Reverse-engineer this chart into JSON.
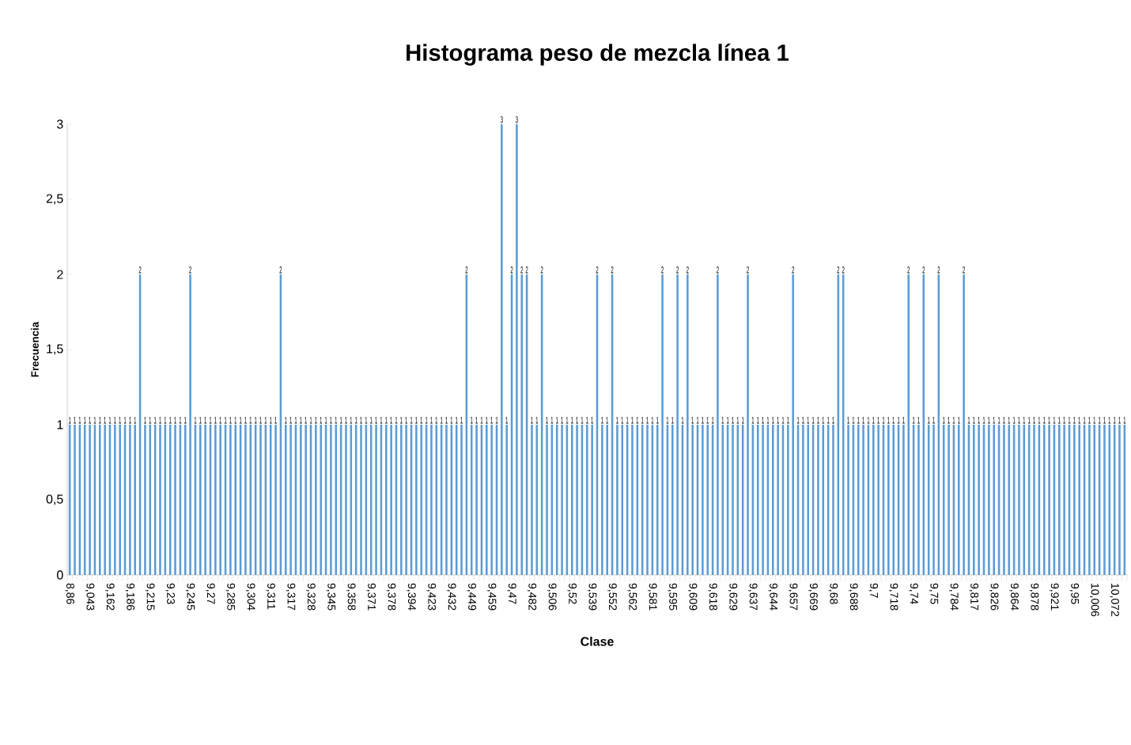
{
  "chart_data": {
    "type": "bar",
    "title": "Histograma peso de mezcla línea 1",
    "xlabel": "Clase",
    "ylabel": "Frecuencia",
    "color": "#5b9bd5",
    "value_labels": [
      "1",
      "1",
      "1",
      "1",
      "1",
      "1",
      "1",
      "1",
      "1",
      "1",
      "1",
      "1",
      "1",
      "1",
      "2",
      "1",
      "1",
      "1",
      "1",
      "1",
      "1",
      "1",
      "1",
      "1",
      "2",
      "1",
      "1",
      "1",
      "1",
      "1",
      "1",
      "1",
      "1",
      "1",
      "1",
      "1",
      "1",
      "1",
      "1",
      "1",
      "1",
      "1",
      "2",
      "1",
      "1",
      "1",
      "1",
      "1",
      "1",
      "1",
      "1",
      "1",
      "1",
      "1",
      "1",
      "1",
      "1",
      "1",
      "1",
      "1",
      "1",
      "1",
      "1",
      "1",
      "1",
      "1",
      "1",
      "1",
      "1",
      "1",
      "1",
      "1",
      "1",
      "1",
      "1",
      "1",
      "1",
      "1",
      "1",
      "2",
      "1",
      "1",
      "1",
      "1",
      "1",
      "1",
      "3",
      "1",
      "2",
      "3",
      "2",
      "2",
      "1",
      "1",
      "2",
      "1",
      "1",
      "1",
      "1",
      "1",
      "1",
      "1",
      "1",
      "1",
      "1",
      "2",
      "1",
      "1",
      "2",
      "1",
      "1",
      "1",
      "1",
      "1",
      "1",
      "1",
      "1",
      "1",
      "2",
      "1",
      "1",
      "2",
      "1",
      "2",
      "1",
      "1",
      "1",
      "1",
      "1",
      "2",
      "1",
      "1",
      "1",
      "1",
      "1",
      "2",
      "1",
      "1",
      "1",
      "1",
      "1",
      "1",
      "1",
      "1",
      "2",
      "1",
      "1",
      "1",
      "1",
      "1",
      "1",
      "1",
      "1",
      "2",
      "2",
      "1",
      "1",
      "1",
      "1",
      "1",
      "1",
      "1",
      "1",
      "1",
      "1",
      "1",
      "1",
      "2",
      "1",
      "1",
      "2",
      "1",
      "1",
      "2",
      "1",
      "1",
      "1",
      "1",
      "2",
      "1",
      "1",
      "1",
      "1",
      "1",
      "1",
      "1",
      "1",
      "1",
      "1",
      "1",
      "1",
      "1",
      "1",
      "1",
      "1",
      "1",
      "1",
      "1",
      "1",
      "1",
      "1",
      "1",
      "1",
      "1",
      "1",
      "1",
      "1",
      "1",
      "1",
      "1",
      "1"
    ],
    "ylim": [
      0,
      3
    ],
    "yticks": [
      0,
      {
        "value": 0.5,
        "label": "0,5"
      },
      1,
      {
        "value": 1.5,
        "label": "1,5"
      },
      2,
      {
        "value": 2.5,
        "label": "2,5"
      },
      3
    ],
    "categories": [
      "8,86",
      null,
      null,
      null,
      "9,043",
      null,
      null,
      null,
      "9,162",
      null,
      null,
      null,
      "9,186",
      null,
      null,
      null,
      "9,215",
      null,
      null,
      null,
      "9,23",
      null,
      null,
      null,
      "9,245",
      null,
      null,
      null,
      "9,27",
      null,
      null,
      null,
      "9,285",
      null,
      null,
      null,
      "9,304",
      null,
      null,
      null,
      "9,311",
      null,
      null,
      null,
      "9,317",
      null,
      null,
      null,
      "9,328",
      null,
      null,
      null,
      "9,345",
      null,
      null,
      null,
      "9,358",
      null,
      null,
      null,
      "9,371",
      null,
      null,
      null,
      "9,378",
      null,
      null,
      null,
      "9,394",
      null,
      null,
      null,
      "9,423",
      null,
      null,
      null,
      "9,432",
      null,
      null,
      null,
      "9,449",
      null,
      null,
      null,
      "9,459",
      null,
      null,
      null,
      "9,47",
      null,
      null,
      null,
      "9,482",
      null,
      null,
      null,
      "9,506",
      null,
      null,
      null,
      "9,52",
      null,
      null,
      null,
      "9,539",
      null,
      null,
      null,
      "9,552",
      null,
      null,
      null,
      "9,562",
      null,
      null,
      null,
      "9,581",
      null,
      null,
      null,
      "9,595",
      null,
      null,
      null,
      "9,609",
      null,
      null,
      null,
      "9,618",
      null,
      null,
      null,
      "9,629",
      null,
      null,
      null,
      "9,637",
      null,
      null,
      null,
      "9,644",
      null,
      null,
      null,
      "9,657",
      null,
      null,
      null,
      "9,669",
      null,
      null,
      null,
      "9,68",
      null,
      null,
      null,
      "9,688",
      null,
      null,
      null,
      "9,7",
      null,
      null,
      null,
      "9,718",
      null,
      null,
      null,
      "9,74",
      null,
      null,
      null,
      "9,75",
      null,
      null,
      null,
      "9,784",
      null,
      null,
      null,
      "9,817",
      null,
      null,
      null,
      "9,826",
      null,
      null,
      null,
      "9,864",
      null,
      null,
      null,
      "9,878",
      null,
      null,
      null,
      "9,921",
      null,
      null,
      null,
      "9,95",
      null,
      null,
      null,
      "10,006",
      null,
      null,
      null,
      "10,072",
      null,
      null
    ],
    "values": [
      1,
      1,
      1,
      1,
      1,
      1,
      1,
      1,
      1,
      1,
      1,
      1,
      1,
      1,
      2,
      1,
      1,
      1,
      1,
      1,
      1,
      1,
      1,
      1,
      2,
      1,
      1,
      1,
      1,
      1,
      1,
      1,
      1,
      1,
      1,
      1,
      1,
      1,
      1,
      1,
      1,
      1,
      2,
      1,
      1,
      1,
      1,
      1,
      1,
      1,
      1,
      1,
      1,
      1,
      1,
      1,
      1,
      1,
      1,
      1,
      1,
      1,
      1,
      1,
      1,
      1,
      1,
      1,
      1,
      1,
      1,
      1,
      1,
      1,
      1,
      1,
      1,
      1,
      1,
      2,
      1,
      1,
      1,
      1,
      1,
      1,
      3,
      1,
      2,
      3,
      2,
      2,
      1,
      1,
      2,
      1,
      1,
      1,
      1,
      1,
      1,
      1,
      1,
      1,
      1,
      2,
      1,
      1,
      2,
      1,
      1,
      1,
      1,
      1,
      1,
      1,
      1,
      1,
      2,
      1,
      1,
      2,
      1,
      2,
      1,
      1,
      1,
      1,
      1,
      2,
      1,
      1,
      1,
      1,
      1,
      2,
      1,
      1,
      1,
      1,
      1,
      1,
      1,
      1,
      2,
      1,
      1,
      1,
      1,
      1,
      1,
      1,
      1,
      2,
      2,
      1,
      1,
      1,
      1,
      1,
      1,
      1,
      1,
      1,
      1,
      1,
      1,
      2,
      1,
      1,
      2,
      1,
      1,
      2,
      1,
      1,
      1,
      1,
      2,
      1,
      1,
      1,
      1,
      1,
      1,
      1,
      1,
      1,
      1,
      1,
      1,
      1,
      1,
      1,
      1,
      1,
      1,
      1,
      1,
      1,
      1,
      1,
      1,
      1,
      1,
      1,
      1,
      1,
      1,
      1,
      1
    ]
  }
}
